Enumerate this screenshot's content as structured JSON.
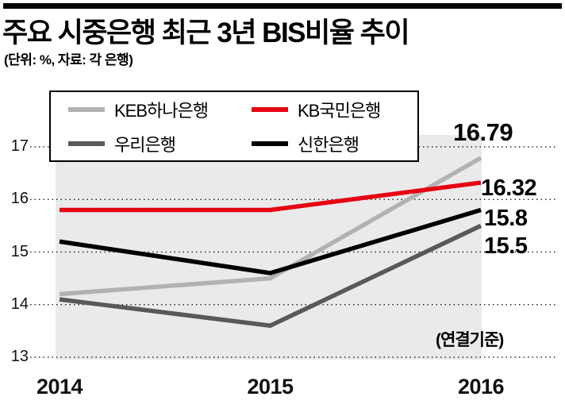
{
  "header": {
    "title": "주요 시중은행 최근 3년 BIS비율 추이",
    "subtitle": "(단위: %, 자료: 각 은행)"
  },
  "chart_data": {
    "type": "line",
    "title": "주요 시중은행 최근 3년 BIS비율 추이",
    "unit_note": "(단위: %, 자료: 각 은행)",
    "basis_note": "(연결기준)",
    "x": [
      "2014",
      "2015",
      "2016"
    ],
    "yticks": [
      17,
      16,
      15,
      14,
      13
    ],
    "ylim": [
      13,
      17.3
    ],
    "grid": "horizontal-dotted",
    "legend_position": "top",
    "plot_background_color": "#eaeaea",
    "series": [
      {
        "name": "KEB하나은행",
        "key": "keb-hana",
        "color": "#b2b2b2",
        "values": [
          14.2,
          14.5,
          16.79
        ],
        "end_label": "16.79"
      },
      {
        "name": "KB국민은행",
        "key": "kb-kookmin",
        "color": "#e60012",
        "values": [
          15.8,
          15.8,
          16.32
        ],
        "end_label": "16.32"
      },
      {
        "name": "우리은행",
        "key": "woori",
        "color": "#595959",
        "values": [
          14.1,
          13.6,
          15.5
        ],
        "end_label": "15.5"
      },
      {
        "name": "신한은행",
        "key": "shinhan",
        "color": "#000000",
        "values": [
          15.2,
          14.6,
          15.8
        ],
        "end_label": "15.8"
      }
    ]
  }
}
